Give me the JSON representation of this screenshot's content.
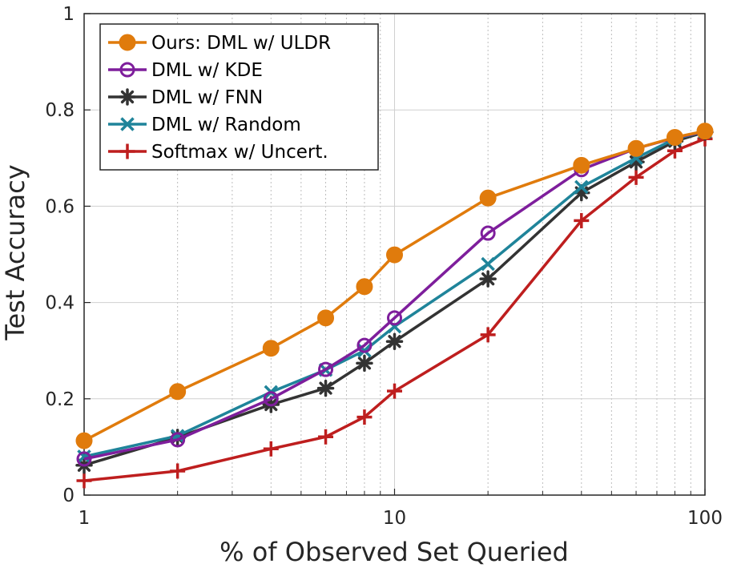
{
  "chart_data": {
    "type": "line",
    "xscale": "log",
    "xlabel": "% of Observed Set Queried",
    "ylabel": "Test Accuracy",
    "xlim": [
      1,
      100
    ],
    "ylim": [
      0,
      1
    ],
    "grid": true,
    "legend_position": "top-left",
    "x": [
      1,
      2,
      4,
      6,
      8,
      10,
      20,
      40,
      60,
      80,
      100
    ],
    "xticks": [
      {
        "value": 1,
        "label": "1"
      },
      {
        "value": 10,
        "label": "10"
      },
      {
        "value": 100,
        "label": "100"
      }
    ],
    "yticks": [
      {
        "value": 0,
        "label": "0"
      },
      {
        "value": 0.2,
        "label": "0.2"
      },
      {
        "value": 0.4,
        "label": "0.4"
      },
      {
        "value": 0.6,
        "label": "0.6"
      },
      {
        "value": 0.8,
        "label": "0.8"
      },
      {
        "value": 1,
        "label": "1"
      }
    ],
    "series": [
      {
        "name": "Ours: DML w/ ULDR",
        "color": "#E07B0C",
        "marker": "filled-circle",
        "values": [
          0.113,
          0.215,
          0.305,
          0.368,
          0.433,
          0.499,
          0.617,
          0.685,
          0.72,
          0.743,
          0.756
        ]
      },
      {
        "name": "DML w/ KDE",
        "color": "#7E1E9C",
        "marker": "open-circle",
        "values": [
          0.075,
          0.115,
          0.2,
          0.261,
          0.311,
          0.368,
          0.544,
          0.676,
          0.72,
          0.742,
          0.755
        ]
      },
      {
        "name": "DML w/ FNN",
        "color": "#333333",
        "marker": "asterisk",
        "values": [
          0.062,
          0.12,
          0.188,
          0.222,
          0.274,
          0.319,
          0.449,
          0.628,
          0.692,
          0.735,
          0.754
        ]
      },
      {
        "name": "DML w/ Random",
        "color": "#1F849A",
        "marker": "x",
        "values": [
          0.08,
          0.123,
          0.214,
          0.26,
          0.3,
          0.35,
          0.48,
          0.64,
          0.7,
          0.74,
          0.755
        ]
      },
      {
        "name": "Softmax w/ Uncert.",
        "color": "#BE1E1E",
        "marker": "plus",
        "values": [
          0.03,
          0.05,
          0.096,
          0.121,
          0.162,
          0.216,
          0.333,
          0.57,
          0.66,
          0.715,
          0.74
        ]
      }
    ]
  }
}
